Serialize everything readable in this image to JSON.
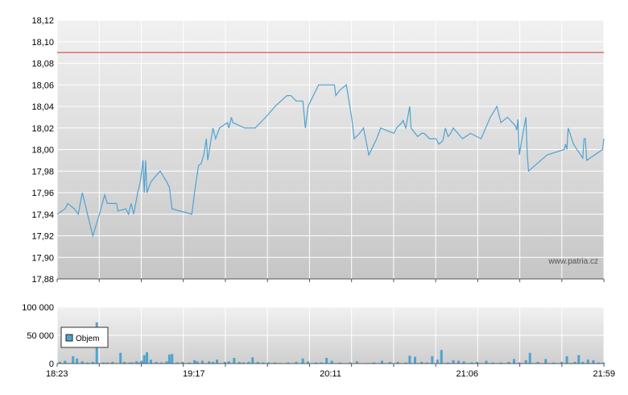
{
  "chart_data": [
    {
      "type": "line",
      "title": "",
      "ylim": [
        17.88,
        18.12
      ],
      "y_ticks": [
        "18,12",
        "18,10",
        "18,08",
        "18,06",
        "18,04",
        "18,02",
        "18,00",
        "17,98",
        "17,96",
        "17,94",
        "17,92",
        "17,90",
        "17,88"
      ],
      "reference_line": 18.09,
      "grid": true,
      "watermark": "www.patria.cz",
      "series": [
        {
          "name": "",
          "color": "#4fa3d1",
          "points": [
            [
              0,
              17.94
            ],
            [
              6,
              17.945
            ],
            [
              8,
              17.95
            ],
            [
              13,
              17.945
            ],
            [
              16,
              17.94
            ],
            [
              19,
              17.96
            ],
            [
              23,
              17.94
            ],
            [
              27,
              17.92
            ],
            [
              32,
              17.94
            ],
            [
              36,
              17.958
            ],
            [
              38,
              17.95
            ],
            [
              45,
              17.95
            ],
            [
              46,
              17.943
            ],
            [
              52,
              17.945
            ],
            [
              54,
              17.94
            ],
            [
              56,
              17.95
            ],
            [
              58,
              17.94
            ],
            [
              61,
              17.96
            ],
            [
              63,
              17.97
            ],
            [
              65,
              17.99
            ],
            [
              66,
              17.96
            ],
            [
              67,
              17.99
            ],
            [
              68,
              17.96
            ],
            [
              71,
              17.97
            ],
            [
              78,
              17.98
            ],
            [
              83,
              17.97
            ],
            [
              85,
              17.965
            ],
            [
              87,
              17.945
            ],
            [
              102,
              17.94
            ],
            [
              104,
              17.96
            ],
            [
              107,
              17.985
            ],
            [
              109,
              17.987
            ],
            [
              111,
              17.995
            ],
            [
              113,
              18.01
            ],
            [
              114,
              17.99
            ],
            [
              118,
              18.02
            ],
            [
              120,
              18.01
            ],
            [
              123,
              18.02
            ],
            [
              129,
              18.025
            ],
            [
              130,
              18.02
            ],
            [
              132,
              18.03
            ],
            [
              133,
              18.025
            ],
            [
              142,
              18.02
            ],
            [
              150,
              18.02
            ],
            [
              158,
              18.03
            ],
            [
              165,
              18.04
            ],
            [
              174,
              18.05
            ],
            [
              177,
              18.05
            ],
            [
              181,
              18.045
            ],
            [
              186,
              18.045
            ],
            [
              188,
              18.02
            ],
            [
              190,
              18.04
            ],
            [
              198,
              18.06
            ],
            [
              210,
              18.06
            ],
            [
              211,
              18.05
            ],
            [
              214,
              18.055
            ],
            [
              219,
              18.06
            ],
            [
              223,
              18.03
            ],
            [
              225,
              18.01
            ],
            [
              229,
              18.015
            ],
            [
              232,
              18.02
            ],
            [
              236,
              17.995
            ],
            [
              242,
              18.01
            ],
            [
              245,
              18.02
            ],
            [
              251,
              18.017
            ],
            [
              255,
              18.015
            ],
            [
              257,
              18.02
            ],
            [
              261,
              18.025
            ],
            [
              262,
              18.027
            ],
            [
              264,
              18.02
            ],
            [
              267,
              18.04
            ],
            [
              268,
              18.02
            ],
            [
              273,
              18.012
            ],
            [
              276,
              18.015
            ],
            [
              278,
              18.015
            ],
            [
              282,
              18.01
            ],
            [
              287,
              18.01
            ],
            [
              289,
              18.005
            ],
            [
              292,
              18.008
            ],
            [
              294,
              18.02
            ],
            [
              296,
              18.012
            ],
            [
              298,
              18.015
            ],
            [
              300,
              18.02
            ],
            [
              307,
              18.01
            ],
            [
              313,
              18.015
            ],
            [
              321,
              18.01
            ],
            [
              328,
              18.03
            ],
            [
              333,
              18.04
            ],
            [
              336,
              18.025
            ],
            [
              341,
              18.03
            ],
            [
              347,
              18.022
            ],
            [
              348,
              18.018
            ],
            [
              349,
              18.028
            ],
            [
              350,
              17.995
            ],
            [
              352,
              18.01
            ],
            [
              355,
              18.03
            ],
            [
              356,
              17.995
            ],
            [
              357,
              17.98
            ],
            [
              371,
              17.995
            ],
            [
              384,
              18.0
            ],
            [
              385,
              18.005
            ],
            [
              386,
              18.0
            ],
            [
              387,
              18.02
            ],
            [
              391,
              18.005
            ],
            [
              398,
              17.992
            ],
            [
              399,
              18.01
            ],
            [
              400,
              18.01
            ],
            [
              401,
              17.99
            ],
            [
              413,
              18.0
            ],
            [
              414,
              18.01
            ]
          ]
        }
      ]
    },
    {
      "type": "bar",
      "title": "",
      "ylim": [
        0,
        100000
      ],
      "y_ticks": [
        "100 000",
        "50 000",
        "0"
      ],
      "x_ticks": [
        "18:23",
        "19:17",
        "20:11",
        "21:06",
        "21:59"
      ],
      "grid": true,
      "legend": {
        "placement": "top-left",
        "label": "Objem"
      },
      "series": [
        {
          "name": "Objem",
          "color": "#4fa3d1",
          "bars": [
            [
              2,
              3000
            ],
            [
              6,
              5000
            ],
            [
              12,
              13000
            ],
            [
              15,
              9000
            ],
            [
              19,
              4000
            ],
            [
              23,
              2000
            ],
            [
              27,
              3000
            ],
            [
              30,
              73000
            ],
            [
              35,
              2000
            ],
            [
              38,
              2000
            ],
            [
              42,
              3000
            ],
            [
              48,
              19000
            ],
            [
              51,
              3000
            ],
            [
              55,
              2000
            ],
            [
              57,
              2000
            ],
            [
              60,
              4000
            ],
            [
              62,
              2000
            ],
            [
              64,
              5000
            ],
            [
              66,
              15000
            ],
            [
              68,
              20000
            ],
            [
              71,
              7000
            ],
            [
              75,
              3000
            ],
            [
              79,
              2000
            ],
            [
              83,
              4000
            ],
            [
              85,
              16000
            ],
            [
              87,
              17000
            ],
            [
              91,
              2000
            ],
            [
              95,
              3000
            ],
            [
              100,
              2000
            ],
            [
              104,
              6000
            ],
            [
              106,
              4000
            ],
            [
              110,
              5000
            ],
            [
              115,
              4000
            ],
            [
              118,
              3000
            ],
            [
              121,
              7000
            ],
            [
              127,
              3000
            ],
            [
              130,
              4000
            ],
            [
              134,
              10000
            ],
            [
              138,
              3000
            ],
            [
              141,
              2000
            ],
            [
              145,
              3000
            ],
            [
              148,
              11000
            ],
            [
              152,
              3000
            ],
            [
              156,
              2000
            ],
            [
              160,
              2000
            ],
            [
              165,
              2000
            ],
            [
              169,
              1000
            ],
            [
              175,
              2000
            ],
            [
              181,
              3000
            ],
            [
              186,
              9000
            ],
            [
              190,
              4000
            ],
            [
              196,
              2000
            ],
            [
              200,
              2000
            ],
            [
              204,
              10000
            ],
            [
              208,
              5000
            ],
            [
              214,
              2000
            ],
            [
              222,
              2000
            ],
            [
              227,
              4000
            ],
            [
              235,
              1000
            ],
            [
              240,
              2000
            ],
            [
              246,
              5000
            ],
            [
              252,
              3000
            ],
            [
              258,
              3000
            ],
            [
              264,
              2000
            ],
            [
              267,
              14000
            ],
            [
              271,
              12000
            ],
            [
              276,
              3000
            ],
            [
              280,
              2000
            ],
            [
              284,
              13000
            ],
            [
              288,
              7000
            ],
            [
              291,
              24000
            ],
            [
              296,
              2000
            ],
            [
              300,
              6000
            ],
            [
              304,
              5000
            ],
            [
              308,
              4000
            ],
            [
              314,
              2000
            ],
            [
              318,
              3000
            ],
            [
              325,
              5000
            ],
            [
              330,
              2000
            ],
            [
              336,
              2000
            ],
            [
              342,
              3000
            ],
            [
              346,
              8000
            ],
            [
              350,
              2000
            ],
            [
              355,
              6000
            ],
            [
              358,
              19000
            ],
            [
              364,
              3000
            ],
            [
              370,
              8000
            ],
            [
              376,
              2000
            ],
            [
              382,
              3000
            ],
            [
              386,
              13000
            ],
            [
              389,
              1000
            ],
            [
              392,
              3000
            ],
            [
              395,
              15000
            ],
            [
              398,
              3000
            ],
            [
              402,
              7000
            ],
            [
              406,
              6000
            ],
            [
              410,
              2000
            ],
            [
              414,
              2000
            ]
          ]
        }
      ]
    }
  ]
}
